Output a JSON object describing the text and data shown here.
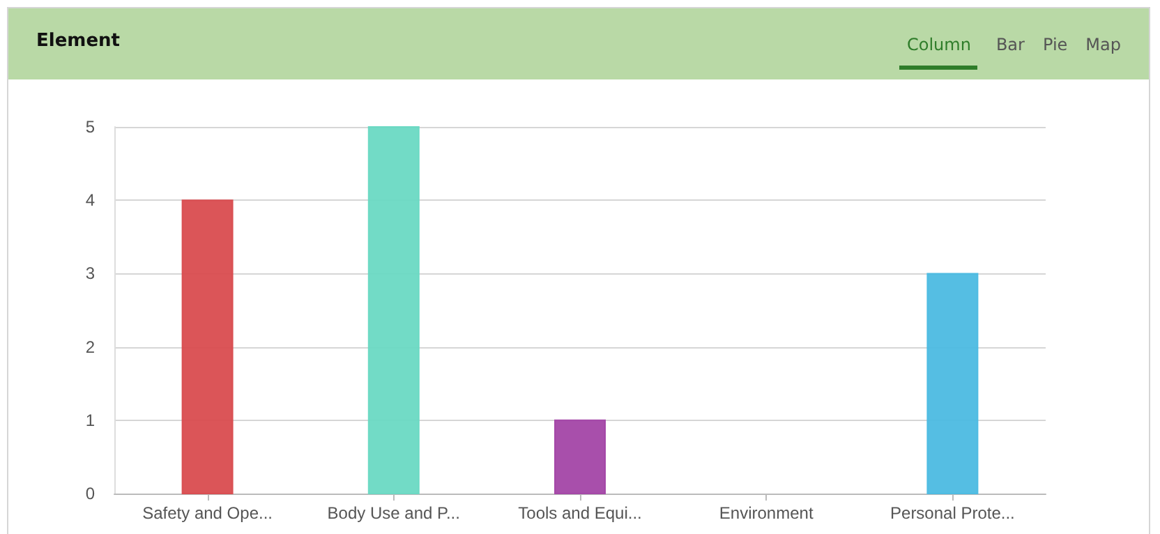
{
  "chart_data": {
    "type": "bar",
    "title": "Element",
    "annotations": [
      "Column",
      "Bar",
      "Pie",
      "Map"
    ],
    "categories": [
      "Safety and Ope...",
      "Body Use and P...",
      "Tools and Equi...",
      "Environment",
      "Personal Prote..."
    ],
    "values": [
      4,
      5,
      1,
      0,
      3
    ],
    "colors": [
      "#d94c4f",
      "#6ad9c3",
      "#a346a6",
      null,
      "#4cbbe2"
    ],
    "ylim": [
      0,
      5
    ],
    "yticks": [
      0,
      1,
      2,
      3,
      4,
      5
    ],
    "grid": "y"
  }
}
